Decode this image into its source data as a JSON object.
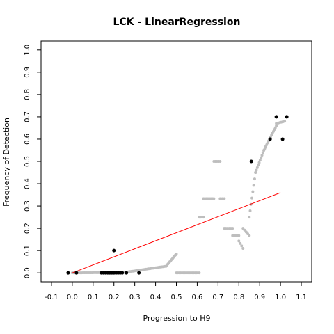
{
  "chart_data": {
    "type": "scatter",
    "title": "LCK - LinearRegression",
    "xlabel": "Progression to H9",
    "ylabel": "Frequency of Detection",
    "xlim": [
      -0.15,
      1.15
    ],
    "ylim": [
      -0.04,
      1.04
    ],
    "xticks": [
      -0.1,
      0.0,
      0.1,
      0.2,
      0.3,
      0.4,
      0.5,
      0.6,
      0.7,
      0.8,
      0.9,
      1.0,
      1.1
    ],
    "xtick_labels": [
      "-0.1",
      "0.0",
      "0.1",
      "0.2",
      "0.3",
      "0.4",
      "0.5",
      "0.6",
      "0.7",
      "0.8",
      "0.9",
      "1.0",
      "1.1"
    ],
    "yticks": [
      0.0,
      0.1,
      0.2,
      0.3,
      0.4,
      0.5,
      0.6,
      0.7,
      0.8,
      0.9,
      1.0
    ],
    "ytick_labels": [
      "0.0",
      "0.1",
      "0.2",
      "0.3",
      "0.4",
      "0.5",
      "0.6",
      "0.7",
      "0.8",
      "0.9",
      "1.0"
    ],
    "grid": false,
    "colors": {
      "observed": "#000000",
      "smoothed": "#bebebe",
      "fit": "#ff0000"
    },
    "fit_line": {
      "x": [
        0.0,
        1.0
      ],
      "y": [
        0.0,
        0.36
      ]
    },
    "observed_points": {
      "x": [
        -0.02,
        0.02,
        0.14,
        0.15,
        0.16,
        0.17,
        0.18,
        0.19,
        0.2,
        0.21,
        0.22,
        0.23,
        0.24,
        0.26,
        0.32,
        0.2,
        0.86,
        0.95,
        0.98,
        1.01,
        1.03
      ],
      "y": [
        0.0,
        0.0,
        0.0,
        0.0,
        0.0,
        0.0,
        0.0,
        0.0,
        0.0,
        0.0,
        0.0,
        0.0,
        0.0,
        0.0,
        0.0,
        0.1,
        0.5,
        0.6,
        0.7,
        0.6,
        0.7
      ]
    },
    "smoothed_segments": [
      {
        "x_start": 0.0,
        "x_end": 0.25,
        "y_start": 0.0,
        "y_end": 0.002,
        "n": 40
      },
      {
        "x_start": 0.25,
        "x_end": 0.45,
        "y_start": 0.002,
        "y_end": 0.03,
        "n": 30
      },
      {
        "x_start": 0.45,
        "x_end": 0.5,
        "y_start": 0.03,
        "y_end": 0.085,
        "n": 12
      },
      {
        "x_start": 0.5,
        "x_end": 0.61,
        "y_start": 0.0,
        "y_end": 0.0,
        "n": 18
      },
      {
        "x_start": 0.61,
        "x_end": 0.63,
        "y_start": 0.25,
        "y_end": 0.25,
        "n": 4
      },
      {
        "x_start": 0.63,
        "x_end": 0.68,
        "y_start": 0.333,
        "y_end": 0.333,
        "n": 8
      },
      {
        "x_start": 0.68,
        "x_end": 0.71,
        "y_start": 0.5,
        "y_end": 0.5,
        "n": 5
      },
      {
        "x_start": 0.71,
        "x_end": 0.73,
        "y_start": 0.333,
        "y_end": 0.333,
        "n": 3
      },
      {
        "x_start": 0.73,
        "x_end": 0.77,
        "y_start": 0.2,
        "y_end": 0.2,
        "n": 6
      },
      {
        "x_start": 0.77,
        "x_end": 0.8,
        "y_start": 0.167,
        "y_end": 0.167,
        "n": 5
      },
      {
        "x_start": 0.8,
        "x_end": 0.82,
        "y_start": 0.143,
        "y_end": 0.11,
        "n": 4
      },
      {
        "x_start": 0.82,
        "x_end": 0.85,
        "y_start": 0.2,
        "y_end": 0.167,
        "n": 5
      },
      {
        "x_start": 0.85,
        "x_end": 0.88,
        "y_start": 0.25,
        "y_end": 0.45,
        "n": 8
      },
      {
        "x_start": 0.88,
        "x_end": 0.92,
        "y_start": 0.45,
        "y_end": 0.55,
        "n": 10
      },
      {
        "x_start": 0.92,
        "x_end": 0.98,
        "y_start": 0.55,
        "y_end": 0.66,
        "n": 14
      },
      {
        "x_start": 0.98,
        "x_end": 1.02,
        "y_start": 0.67,
        "y_end": 0.68,
        "n": 6
      }
    ]
  }
}
